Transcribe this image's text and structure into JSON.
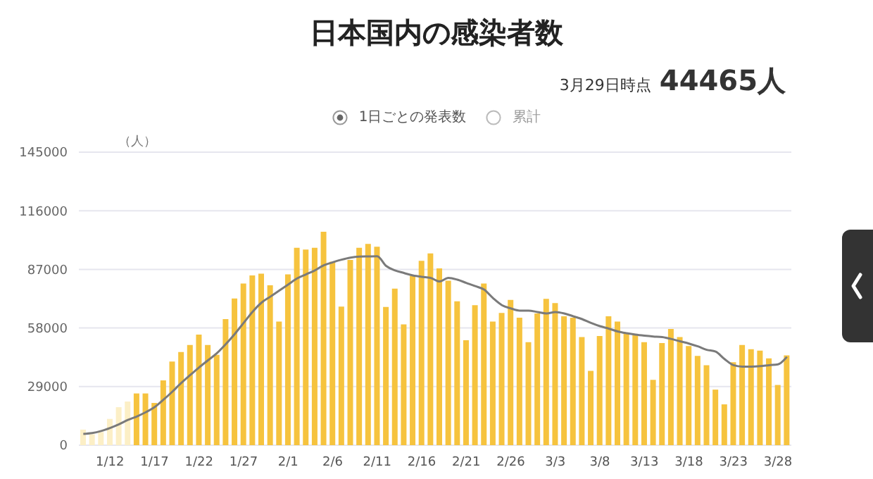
{
  "chart_data": {
    "type": "bar",
    "title": "日本国内の感染者数",
    "annotations": [
      "3月29日時点",
      "44465人",
      "1日ごとの発表数",
      "累計"
    ],
    "ylabel": "（人）",
    "categories": [
      null,
      null,
      null,
      "1/12",
      null,
      null,
      null,
      null,
      "1/17",
      null,
      null,
      null,
      null,
      "1/22",
      null,
      null,
      null,
      null,
      "1/27",
      null,
      null,
      null,
      null,
      "2/1",
      null,
      null,
      null,
      null,
      "2/6",
      null,
      null,
      null,
      null,
      "2/11",
      null,
      null,
      null,
      null,
      "2/16",
      null,
      null,
      null,
      null,
      "2/21",
      null,
      null,
      null,
      null,
      "2/26",
      null,
      null,
      null,
      null,
      "3/3",
      null,
      null,
      null,
      null,
      "3/8",
      null,
      null,
      null,
      null,
      "3/13",
      null,
      null,
      null,
      null,
      "3/18",
      null,
      null,
      null,
      null,
      "3/23",
      null,
      null,
      null,
      null,
      "3/28",
      null
    ],
    "series": [
      {
        "color": "#f6c33e",
        "colors": [
          "#fcefc6",
          "#fcefc6",
          "#fcefc6",
          "#fcefc6",
          "#fcefc6",
          "#fcefc6",
          "#f6c33e",
          "#f6c33e",
          "#f6c33e",
          "#f6c33e",
          "#f6c33e",
          "#f6c33e",
          "#f6c33e",
          "#f6c33e",
          "#f6c33e",
          "#f6c33e",
          "#f6c33e",
          "#f6c33e",
          "#f6c33e",
          "#f6c33e",
          "#f6c33e",
          "#f6c33e",
          "#f6c33e",
          "#f6c33e",
          "#f6c33e",
          "#f6c33e",
          "#f6c33e",
          "#f6c33e",
          "#f6c33e",
          "#f6c33e",
          "#f6c33e",
          "#f6c33e",
          "#f6c33e",
          "#f6c33e",
          "#f6c33e",
          "#f6c33e",
          "#f6c33e",
          "#f6c33e",
          "#f6c33e",
          "#f6c33e",
          "#f6c33e",
          "#f6c33e",
          "#f6c33e",
          "#f6c33e",
          "#f6c33e",
          "#f6c33e",
          "#f6c33e",
          "#f6c33e",
          "#f6c33e",
          "#f6c33e",
          "#f6c33e",
          "#f6c33e",
          "#f6c33e",
          "#f6c33e",
          "#f6c33e",
          "#f6c33e",
          "#f6c33e",
          "#f6c33e",
          "#f6c33e",
          "#f6c33e",
          "#f6c33e",
          "#f6c33e",
          "#f6c33e",
          "#f6c33e",
          "#f6c33e",
          "#f6c33e",
          "#f6c33e",
          "#f6c33e",
          "#f6c33e",
          "#f6c33e",
          "#f6c33e",
          "#f6c33e",
          "#f6c33e",
          "#f6c33e",
          "#f6c33e",
          "#f6c33e",
          "#f6c33e",
          "#f6c33e",
          "#f6c33e",
          "#f6c33e"
        ],
        "values": [
          7700,
          5400,
          6500,
          13000,
          18800,
          21600,
          25600,
          25600,
          20900,
          32100,
          41400,
          46100,
          49600,
          54700,
          49600,
          44700,
          62400,
          72600,
          80000,
          84000,
          84900,
          79100,
          61200,
          84500,
          97700,
          96800,
          97700,
          105600,
          90800,
          68600,
          91700,
          97700,
          99600,
          98200,
          68400,
          77500,
          59800,
          83800,
          91200,
          94900,
          87500,
          81400,
          71200,
          51900,
          69300,
          80000,
          61200,
          65400,
          71900,
          63100,
          51000,
          65200,
          72400,
          70300,
          63800,
          63100,
          53500,
          36800,
          54000,
          63800,
          61200,
          55400,
          54900,
          51000,
          32300,
          50500,
          57500,
          53500,
          49100,
          44200,
          39600,
          27500,
          20200,
          41000,
          49600,
          47500,
          46800,
          43000,
          29800,
          44465
        ]
      },
      {
        "type": "line",
        "color": "#7a7a7a",
        "marker": "none",
        "values": [
          5600,
          6000,
          7000,
          8500,
          10300,
          12500,
          14200,
          16300,
          18800,
          22500,
          26500,
          30800,
          34700,
          38500,
          42000,
          45500,
          50000,
          55000,
          60500,
          66000,
          70500,
          73500,
          76500,
          79500,
          82500,
          84500,
          86500,
          89000,
          90500,
          91800,
          92800,
          93300,
          93400,
          93500,
          88700,
          86500,
          85200,
          84000,
          83300,
          82800,
          81000,
          82800,
          81900,
          80300,
          78700,
          77000,
          72800,
          69300,
          67700,
          66600,
          66600,
          65900,
          65200,
          65900,
          65200,
          63800,
          62400,
          60500,
          58900,
          57700,
          56300,
          55400,
          54700,
          54200,
          53800,
          53500,
          52600,
          51400,
          50300,
          48900,
          47200,
          46300,
          42600,
          39600,
          38900,
          38900,
          39100,
          39600,
          40000,
          43700
        ]
      }
    ],
    "ylim": [
      0,
      145000
    ],
    "yticks": [
      0,
      29000,
      58000,
      87000,
      116000,
      145000
    ],
    "grid": "y"
  }
}
